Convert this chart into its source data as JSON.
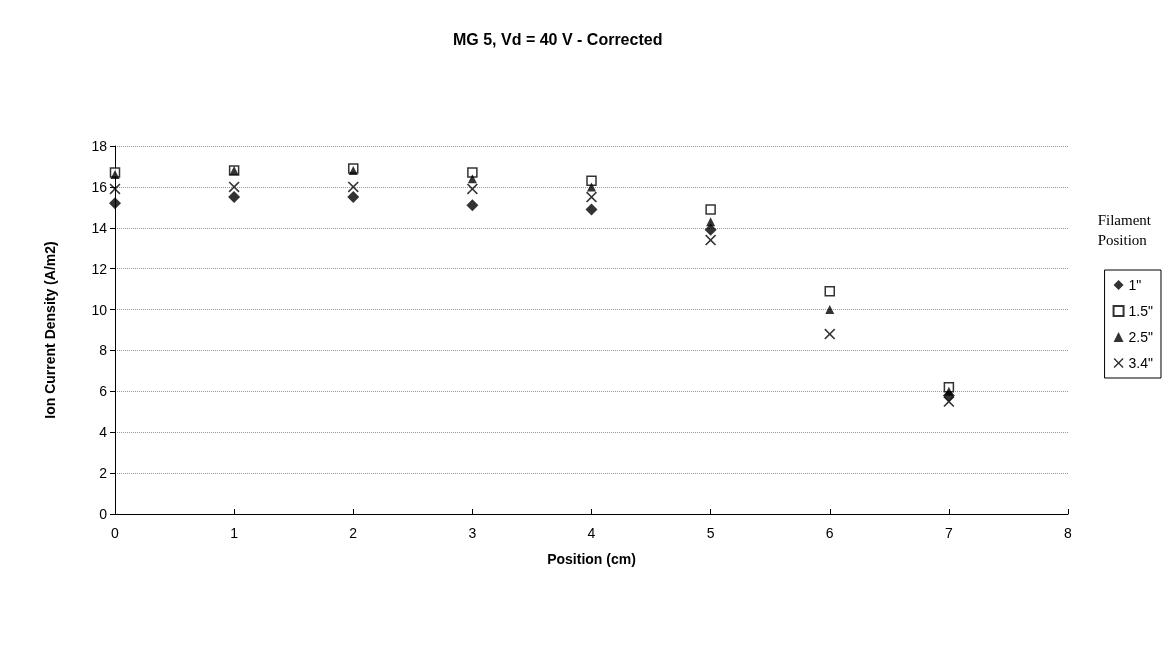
{
  "chart_data": {
    "type": "scatter",
    "title": "MG 5, Vd = 40 V - Corrected",
    "xlabel": "Position (cm)",
    "ylabel": "Ion Current Density (A/m2)",
    "legend_title": "Filament Position",
    "legend": "right",
    "grid": "y",
    "x": [
      0,
      1,
      2,
      3,
      4,
      5,
      6,
      7
    ],
    "xlim": [
      0,
      8
    ],
    "xticks": [
      0,
      1,
      2,
      3,
      4,
      5,
      6,
      7,
      8
    ],
    "ylim": [
      0,
      18
    ],
    "yticks": [
      0,
      2,
      4,
      6,
      8,
      10,
      12,
      14,
      16,
      18
    ],
    "series": [
      {
        "name": "1\"",
        "color": "#000000",
        "marker": "diamond",
        "values": [
          15.2,
          15.5,
          15.5,
          15.1,
          14.9,
          13.9,
          null,
          5.8
        ]
      },
      {
        "name": "1.5\"",
        "color": "#000000",
        "marker": "square",
        "values": [
          16.7,
          16.8,
          16.9,
          16.7,
          16.3,
          14.9,
          10.9,
          6.2
        ]
      },
      {
        "name": "2.5\"",
        "color": "#000000",
        "marker": "triangle",
        "values": [
          16.6,
          16.8,
          16.8,
          16.4,
          16.0,
          14.3,
          10.0,
          6.0
        ]
      },
      {
        "name": "3.4\"",
        "color": "#000000",
        "marker": "cross",
        "values": [
          15.9,
          16.0,
          16.0,
          15.9,
          15.5,
          13.4,
          8.8,
          5.5
        ]
      }
    ]
  }
}
